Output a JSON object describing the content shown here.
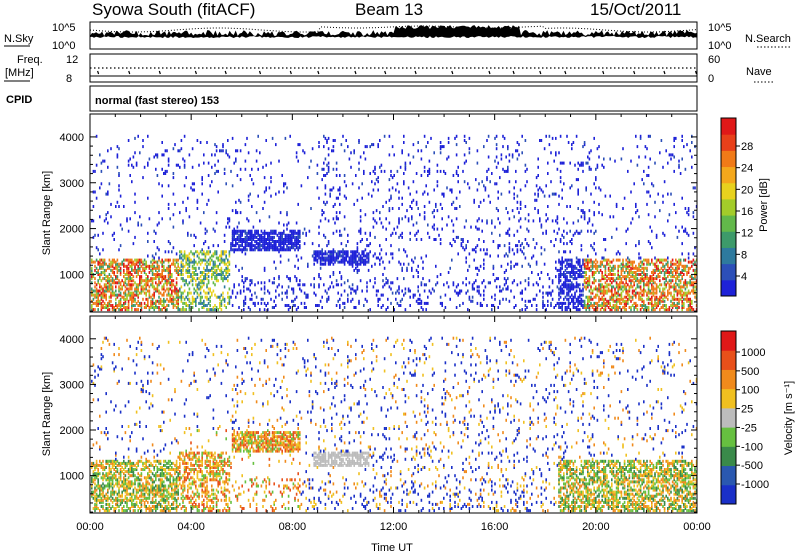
{
  "header": {
    "station": "Syowa South (fitACF)",
    "beam": "Beam 13",
    "date": "15/Oct/2011"
  },
  "strips": {
    "nsky_label": "N.Sky",
    "nsky_ticks": [
      "10^5",
      "10^0"
    ],
    "nsearch_label": "N.Search",
    "nsearch_ticks": [
      "10^5",
      "10^0"
    ],
    "freq_label_1": "Freq.",
    "freq_label_2": "[MHz]",
    "freq_ticks": [
      "12",
      "8"
    ],
    "nave_label": "Nave",
    "nave_ticks": [
      "60",
      "0"
    ],
    "cpid_label": "CPID",
    "cpid_text": "normal (fast stereo) 153"
  },
  "chart_data": [
    {
      "type": "heatmap",
      "panel": "power",
      "xlabel": "",
      "ylabel": "Slant Range [km]",
      "ylim": [
        180,
        4500
      ],
      "yticks": [
        1000,
        2000,
        3000,
        4000
      ],
      "xlim": [
        0,
        24
      ],
      "colorbar": {
        "label": "Power [dB]",
        "ticks": [
          "4",
          "8",
          "12",
          "16",
          "20",
          "24",
          "28"
        ],
        "colors": [
          "#1e22d8",
          "#2c4fb8",
          "#2e7a9e",
          "#3d9a6a",
          "#62b84a",
          "#a3cc2a",
          "#e8d21e",
          "#f4a81c",
          "#f07a18",
          "#e8401a",
          "#e01818"
        ]
      }
    },
    {
      "type": "heatmap",
      "panel": "velocity",
      "xlabel": "Time UT",
      "ylabel": "Slant Range [km]",
      "ylim": [
        180,
        4500
      ],
      "yticks": [
        1000,
        2000,
        3000,
        4000
      ],
      "xlim": [
        0,
        24
      ],
      "xticks": [
        "00:00",
        "04:00",
        "08:00",
        "12:00",
        "16:00",
        "20:00",
        "00:00"
      ],
      "colorbar": {
        "label": "Velocity [m s⁻¹]",
        "ticks": [
          "1000",
          "500",
          "100",
          "25",
          "-25",
          "-100",
          "-500",
          "-1000"
        ],
        "colors": [
          "#1a30c8",
          "#2a58b0",
          "#3a8a4a",
          "#66c040",
          "#bcbcbc",
          "#f0c020",
          "#f08a1c",
          "#e8501a",
          "#e01818"
        ]
      }
    }
  ]
}
